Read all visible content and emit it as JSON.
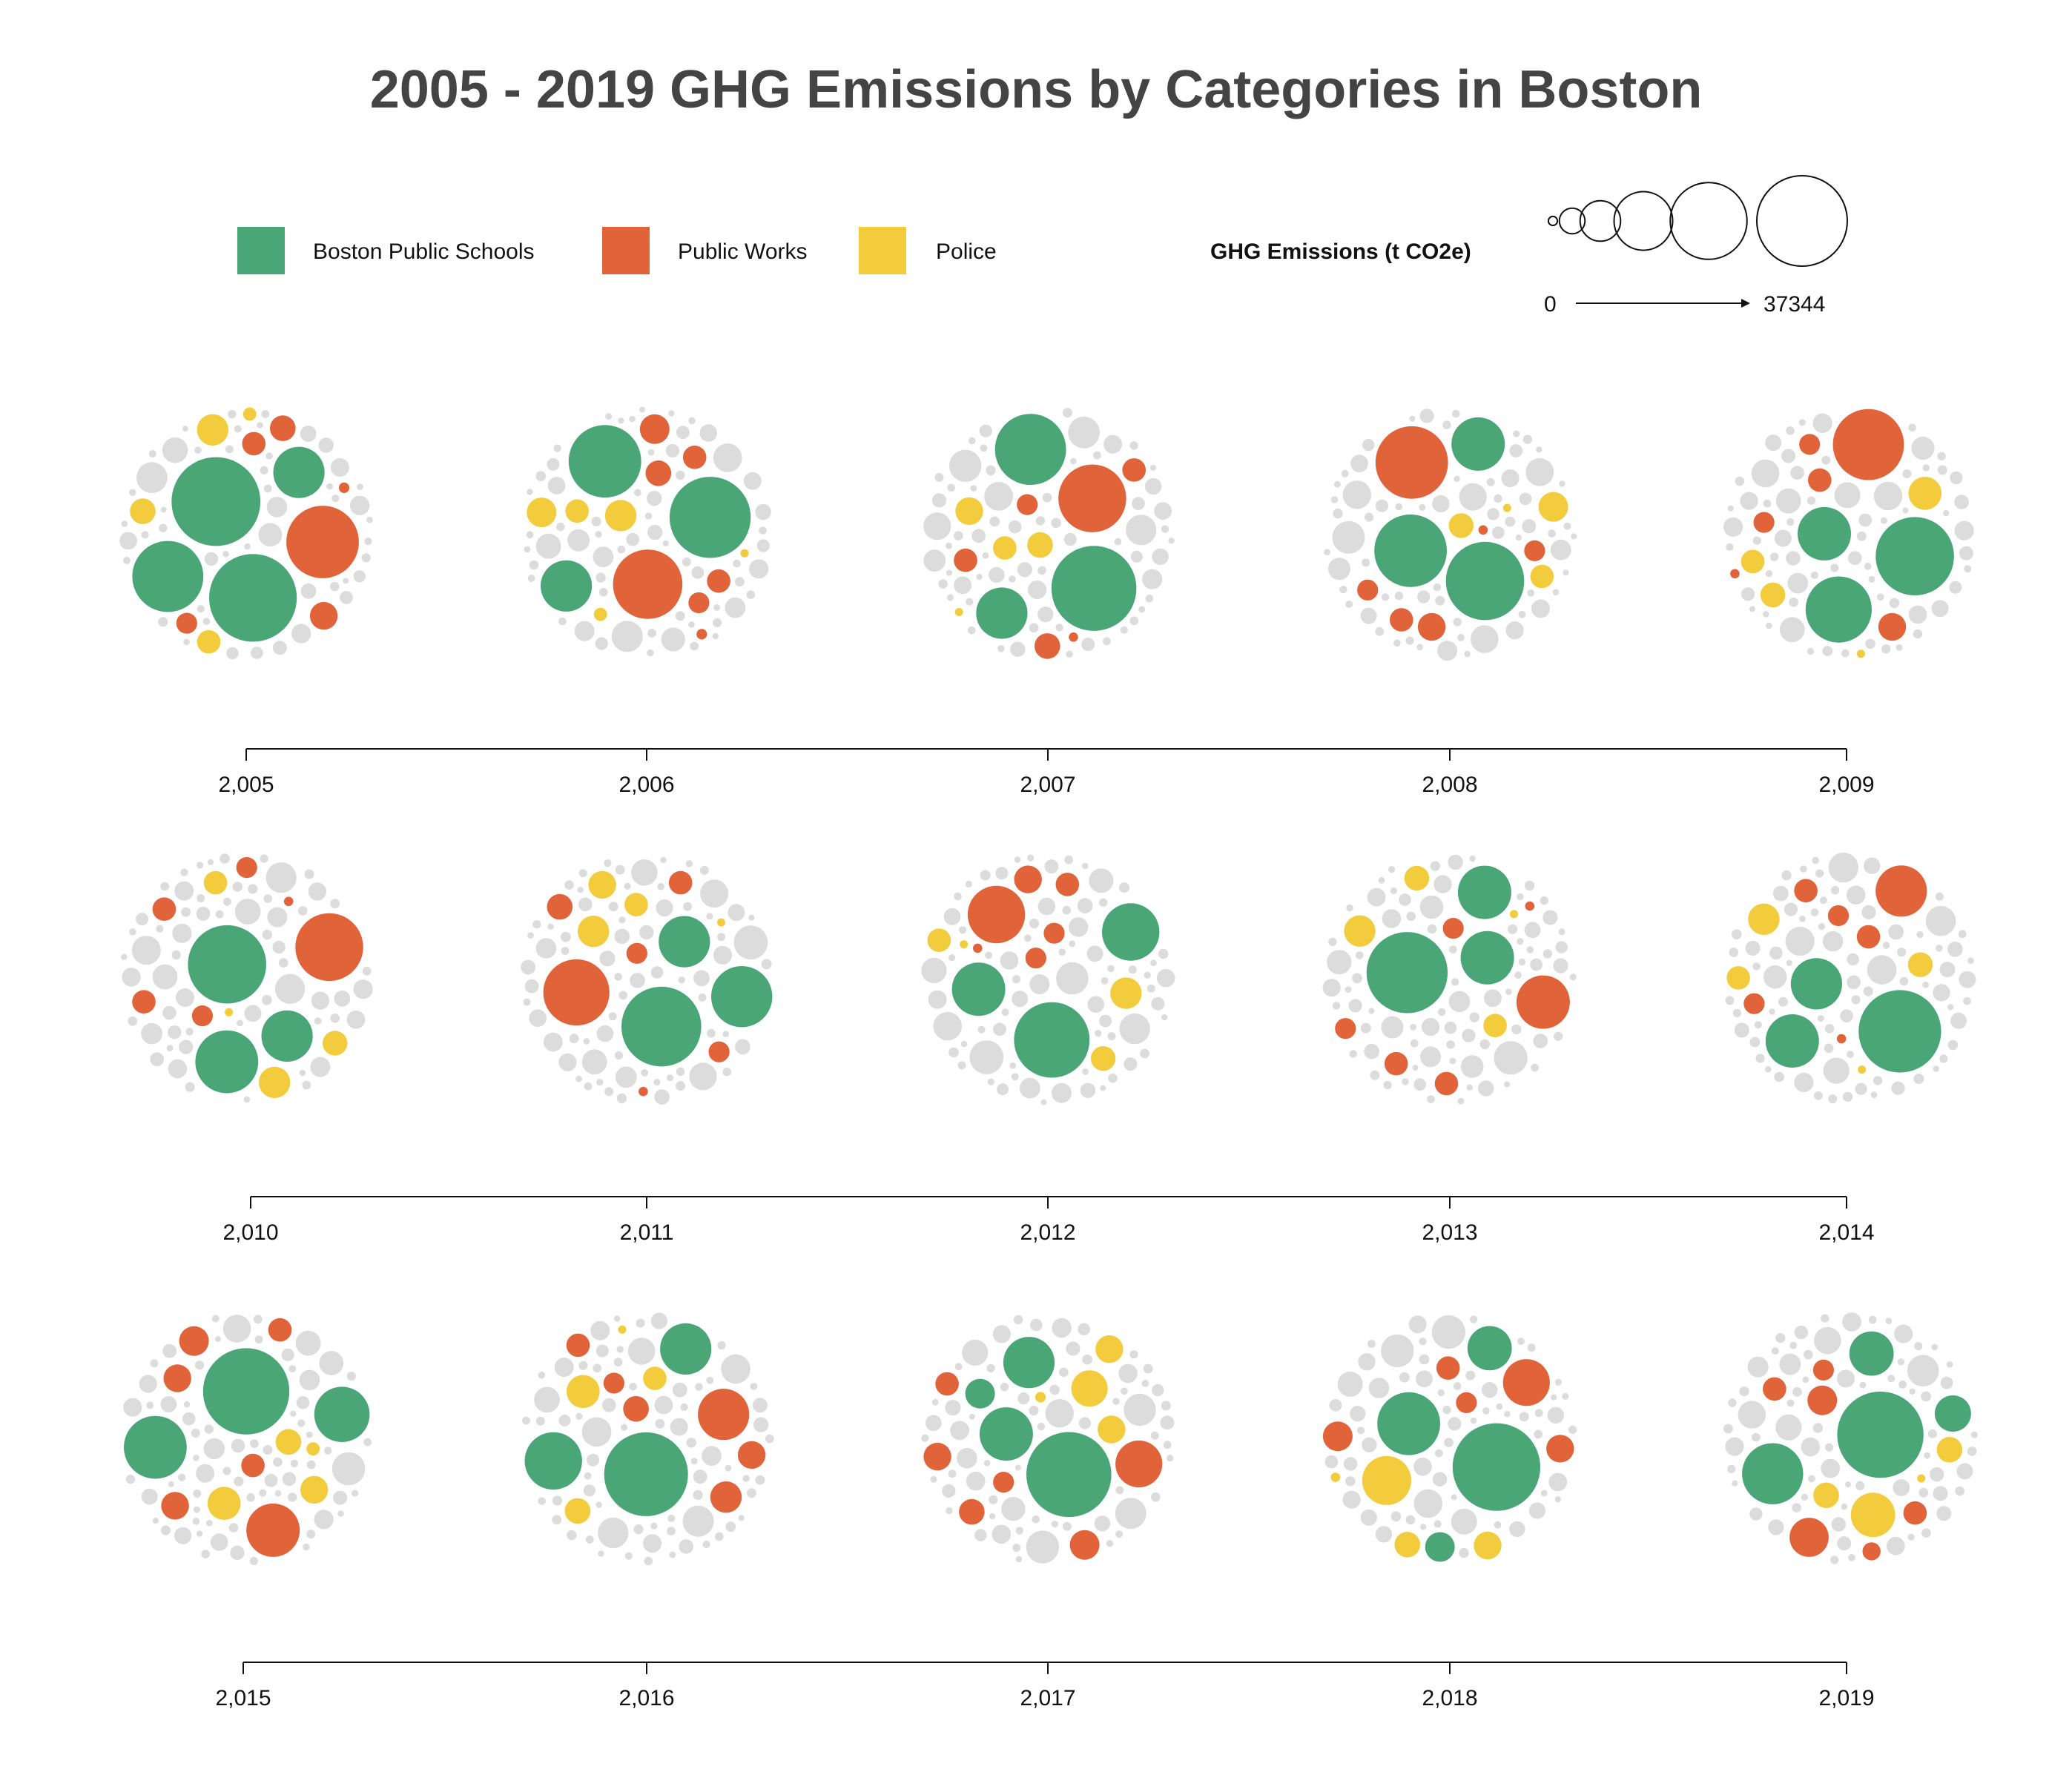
{
  "chart_data": {
    "type": "scatter",
    "title": "2005 - 2019 GHG Emissions by Categories in Boston",
    "legend": [
      {
        "name": "Boston Public Schools",
        "color": "#4aa676"
      },
      {
        "name": "Public Works",
        "color": "#e0633a"
      },
      {
        "name": "Police",
        "color": "#f2cc3c"
      }
    ],
    "other_color": "#dcdcdc",
    "size_legend": {
      "title": "GHG Emissions (t CO2e)",
      "min_label": "0",
      "max_label": "37344",
      "max": 37344
    },
    "tick_labels": [
      "2,005",
      "2,006",
      "2,007",
      "2,008",
      "2,009",
      "2,010",
      "2,011",
      "2,012",
      "2,013",
      "2,014",
      "2,015",
      "2,016",
      "2,017",
      "2,018",
      "2,019"
    ],
    "years": [
      {
        "year": 2005,
        "schools": [
          23000,
          36000,
          12000,
          35000
        ],
        "works": [
          24000,
          2000,
          2500,
          3500,
          3000,
          500
        ],
        "police": [
          2500,
          4500,
          3000,
          800
        ]
      },
      {
        "year": 2006,
        "schools": [
          24000,
          30000,
          12000
        ],
        "works": [
          22000,
          2000,
          2500,
          2500,
          4000,
          3000,
          500
        ],
        "police": [
          4500,
          2500,
          4000,
          800,
          300
        ]
      },
      {
        "year": 2007,
        "schools": [
          12000,
          33000,
          23000
        ],
        "works": [
          21000,
          3000,
          2500,
          2000,
          2500,
          400
        ],
        "police": [
          3500,
          3000,
          2500,
          300
        ]
      },
      {
        "year": 2008,
        "schools": [
          13000,
          28000,
          24000
        ],
        "works": [
          24000,
          2000,
          2500,
          2000,
          3500,
          400
        ],
        "police": [
          4000,
          2500,
          2800,
          300
        ]
      },
      {
        "year": 2009,
        "schools": [
          20000,
          28000,
          13000
        ],
        "works": [
          23000,
          2000,
          2500,
          2000,
          3500,
          400
        ],
        "police": [
          5000,
          2800,
          2500,
          300
        ]
      },
      {
        "year": 2010,
        "schools": [
          12000,
          28000,
          18000
        ],
        "works": [
          21000,
          2000,
          2500,
          2500,
          2000,
          400
        ],
        "police": [
          4500,
          2500,
          2800,
          300
        ]
      },
      {
        "year": 2011,
        "schools": [
          29000,
          17000,
          12000
        ],
        "works": [
          20000,
          2000,
          2500,
          2000,
          3000,
          400
        ],
        "police": [
          3500,
          4500,
          2500,
          300
        ]
      },
      {
        "year": 2012,
        "schools": [
          26000,
          15000,
          13000
        ],
        "works": [
          15000,
          2000,
          2500,
          3500,
          2000,
          400
        ],
        "police": [
          4500,
          2800,
          2500,
          300
        ]
      },
      {
        "year": 2013,
        "schools": [
          30000,
          13000,
          13000
        ],
        "works": [
          13000,
          2000,
          2500,
          2000,
          2500,
          400
        ],
        "police": [
          4500,
          2500,
          2800,
          300
        ]
      },
      {
        "year": 2014,
        "schools": [
          31000,
          12000,
          13000
        ],
        "works": [
          12000,
          2500,
          2000,
          2500,
          2000,
          400
        ],
        "police": [
          4500,
          2800,
          2500,
          300
        ]
      },
      {
        "year": 2015,
        "schools": [
          34000,
          18000,
          14000
        ],
        "works": [
          13000,
          4000,
          3500,
          2500,
          3500,
          2500
        ],
        "police": [
          5000,
          3500,
          3000,
          800
        ]
      },
      {
        "year": 2016,
        "schools": [
          32000,
          15000,
          12000
        ],
        "works": [
          12000,
          3500,
          4500,
          2500,
          3000,
          2000
        ],
        "police": [
          5000,
          2500,
          3000,
          300
        ]
      },
      {
        "year": 2017,
        "schools": [
          33000,
          13000,
          12000,
          4000
        ],
        "works": [
          10000,
          4000,
          3500,
          2500,
          3000,
          2000
        ],
        "police": [
          6000,
          3500,
          3500,
          500
        ]
      },
      {
        "year": 2018,
        "schools": [
          35000,
          18000,
          9000,
          4000
        ],
        "works": [
          10000,
          4000,
          3500,
          2500,
          2000
        ],
        "police": [
          11000,
          3500,
          3000,
          400
        ]
      },
      {
        "year": 2019,
        "schools": [
          34000,
          17000,
          6000,
          9000
        ],
        "works": [
          7000,
          4000,
          2500,
          2500,
          2000,
          1500
        ],
        "police": [
          9000,
          3000,
          3000,
          300
        ]
      }
    ]
  }
}
